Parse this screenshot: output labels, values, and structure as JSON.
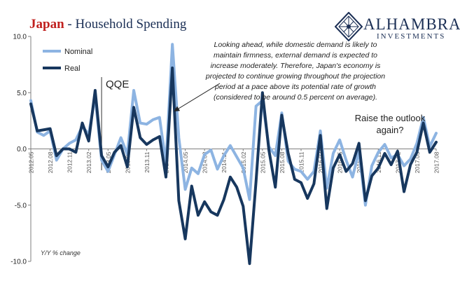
{
  "header": {
    "title_country": "Japan",
    "title_rest": "- Household Spending"
  },
  "logo": {
    "name": "ALHAMBRA",
    "sub": "INVESTMENTS"
  },
  "annotations": {
    "forecast_note": "Looking ahead, while domestic demand is likely to maintain firmness, external demand is expected to increase moderately. Therefore, Japan's economy is projected to continue growing throughout the projection period at a pace above its potential rate of growth (considered to be around 0.5 percent on average).",
    "raise": "Raise the outlook again?",
    "qqe": "QQE",
    "y_unit": "Y/Y % change"
  },
  "colors": {
    "nominal": "#8db4e2",
    "real": "#17375e",
    "title_red": "#c0211f",
    "title_navy": "#1b2f55"
  },
  "chart_data": {
    "type": "line",
    "title": "Japan - Household Spending",
    "ylabel": "Y/Y % change",
    "ylim": [
      -10,
      10
    ],
    "yticks": [
      10.0,
      5.0,
      0.0,
      -5.0,
      -10.0
    ],
    "ytick_labels": [
      "10.0",
      "5.0",
      "0.0",
      "-5.0",
      "-10.0"
    ],
    "x_start": "2012.05",
    "x_end": "2017.08",
    "x_tick_labels": [
      {
        "label": "2012.05",
        "index": 0
      },
      {
        "label": "2012.08",
        "index": 3
      },
      {
        "label": "2012.11",
        "index": 6
      },
      {
        "label": "2013.02",
        "index": 9
      },
      {
        "label": "2013.05",
        "index": 12
      },
      {
        "label": "2013.08",
        "index": 15
      },
      {
        "label": "2013.11",
        "index": 18
      },
      {
        "label": "2014.02",
        "index": 21
      },
      {
        "label": "2014.05",
        "index": 24
      },
      {
        "label": "2014.08",
        "index": 27
      },
      {
        "label": "2014.11",
        "index": 30
      },
      {
        "label": "2015.02",
        "index": 33
      },
      {
        "label": "2015.05",
        "index": 36
      },
      {
        "label": "2015.08",
        "index": 39
      },
      {
        "label": "2015.11",
        "index": 42
      },
      {
        "label": "2016.02",
        "index": 45
      },
      {
        "label": "2016.05",
        "index": 48
      },
      {
        "label": "2016.08",
        "index": 51
      },
      {
        "label": "2016.11",
        "index": 54
      },
      {
        "label": "2017.02",
        "index": 57
      },
      {
        "label": "2017.05",
        "index": 60
      },
      {
        "label": "2017.08",
        "index": 63
      }
    ],
    "qqe_index": 11,
    "legend_position": "top-left",
    "grid": false,
    "series": [
      {
        "name": "Nominal",
        "values": [
          4.3,
          1.5,
          1.2,
          1.6,
          -1.0,
          0.0,
          0.5,
          0.8,
          2.0,
          1.3,
          4.7,
          -1.0,
          -2.0,
          -0.5,
          1.0,
          -0.5,
          5.2,
          2.3,
          2.2,
          2.6,
          2.8,
          -1.3,
          9.3,
          1.0,
          -3.6,
          -1.7,
          -2.2,
          -0.5,
          -0.1,
          -1.8,
          -0.6,
          0.3,
          -0.7,
          -1.7,
          -4.5,
          3.8,
          4.3,
          0.2,
          -0.6,
          3.2,
          -1.1,
          -1.8,
          -2.0,
          -2.7,
          -2.0,
          1.6,
          -3.5,
          -0.4,
          0.8,
          -1.0,
          -2.5,
          -0.2,
          -5.0,
          -1.5,
          -0.3,
          0.4,
          -0.8,
          -0.5,
          -1.5,
          -0.9,
          0.5,
          2.8,
          0.2,
          1.4
        ]
      },
      {
        "name": "Real",
        "values": [
          4.0,
          1.6,
          1.7,
          1.8,
          -0.6,
          0.0,
          0.0,
          -0.3,
          2.3,
          0.7,
          5.2,
          -0.6,
          -1.6,
          -0.3,
          0.3,
          -1.6,
          3.7,
          1.0,
          0.4,
          0.8,
          1.1,
          -2.5,
          7.2,
          -4.6,
          -8.0,
          -3.3,
          -5.9,
          -4.7,
          -5.6,
          -5.9,
          -4.5,
          -2.5,
          -3.4,
          -5.1,
          -10.2,
          -2.9,
          5.0,
          -0.1,
          -3.4,
          3.0,
          -0.4,
          -2.7,
          -3.0,
          -4.4,
          -3.1,
          1.2,
          -5.3,
          -1.7,
          -0.5,
          -2.0,
          -1.3,
          0.5,
          -4.6,
          -2.4,
          -1.7,
          -0.4,
          -1.4,
          -0.2,
          -3.8,
          -1.4,
          -0.3,
          2.3,
          -0.3,
          0.6
        ]
      }
    ]
  }
}
